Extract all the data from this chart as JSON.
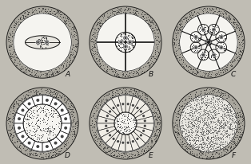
{
  "figure_bg": "#c0bdb4",
  "outer_ring_fill": "#b0ada4",
  "inner_bg": "#f5f4f0",
  "line_color": "#111111",
  "stipple_dark": "#333333",
  "stipple_mid": "#555555",
  "label_color": "#111111",
  "labels": [
    "A",
    "B",
    "C",
    "D",
    "E",
    "F"
  ],
  "outer_r": 0.46,
  "ring_inner_r": 0.37,
  "ring_stipple_n": 400,
  "ring_stipple_s": 0.3
}
